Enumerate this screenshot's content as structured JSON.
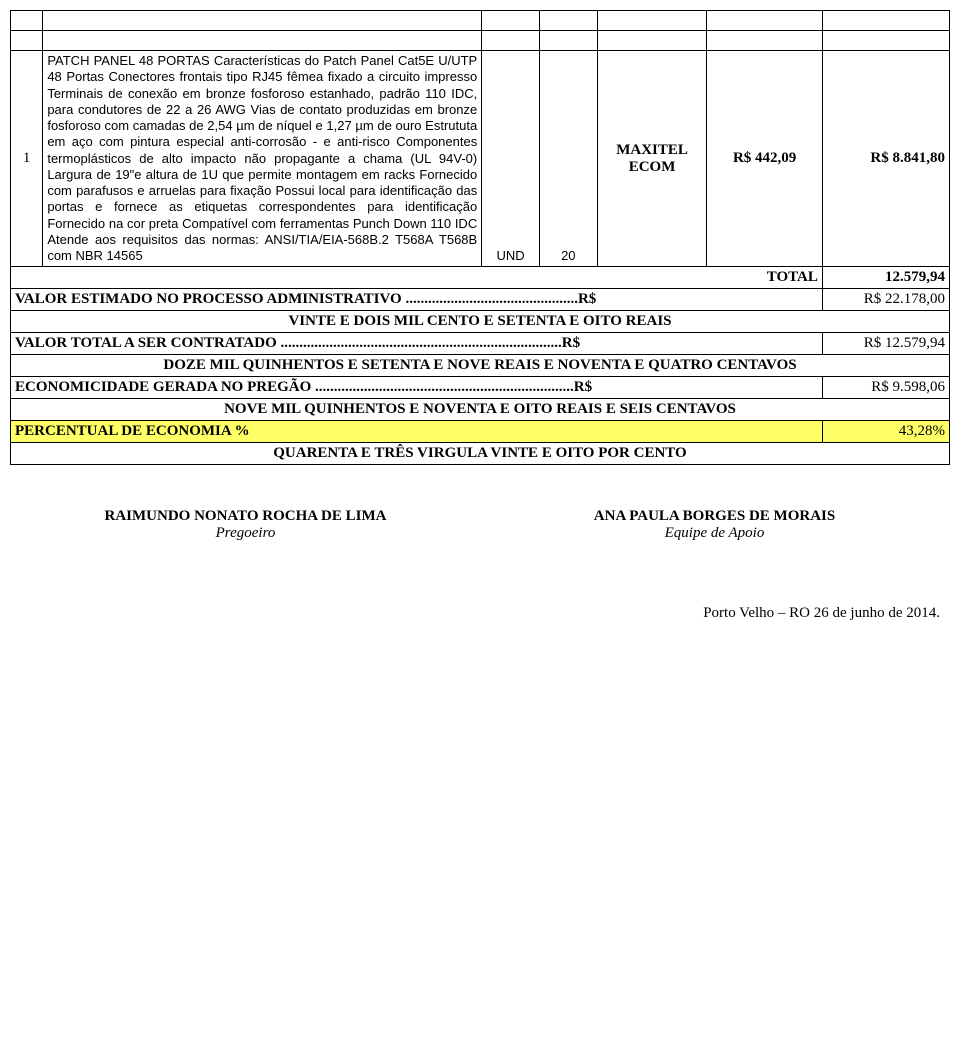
{
  "item": {
    "num": "1",
    "description": "PATCH PANEL 48 PORTAS Características do Patch Panel Cat5E U/UTP 48 Portas Conectores frontais tipo RJ45 fêmea fixado a circuito impresso Terminais de conexão em bronze fosforoso estanhado, padrão 110 IDC, para condutores de 22 a 26 AWG Vias de contato produzidas em bronze fosforoso com camadas de 2,54 µm de níquel e 1,27 µm de ouro Estrututa em aço com pintura especial anti-corrosão - e anti-risco Componentes termoplásticos de alto impacto não propagante a chama (UL 94V-0) Largura de 19\"e altura de 1U que permite montagem em racks Fornecido com parafusos e arruelas para fixação Possui local para identificação das portas e fornece as etiquetas correspondentes para identificação Fornecido na cor preta Compatível com ferramentas Punch Down 110 IDC Atende aos requisitos das normas: ANSI/TIA/EIA-568B.2 T568A T568B com NBR 14565",
    "unit": "UND",
    "qty": "20",
    "vendor": "MAXITEL ECOM",
    "unit_price": "R$ 442,09",
    "total_price": "R$ 8.841,80"
  },
  "totals": {
    "total_label": "TOTAL",
    "total_value": "12.579,94",
    "estimado_label": "VALOR ESTIMADO NO PROCESSO ADMINISTRATIVO ..............................................R$",
    "estimado_value": "R$ 22.178,00",
    "estimado_words": "VINTE E DOIS MIL CENTO E SETENTA E OITO REAIS",
    "contratado_label": "VALOR TOTAL A SER CONTRATADO ...........................................................................R$",
    "contratado_value": "R$ 12.579,94",
    "contratado_words": "DOZE MIL QUINHENTOS E SETENTA E NOVE REAIS E NOVENTA E QUATRO CENTAVOS",
    "economicidade_label": "ECONOMICIDADE GERADA NO PREGÃO .....................................................................R$",
    "economicidade_value": "R$ 9.598,06",
    "economicidade_words": "NOVE MIL QUINHENTOS E NOVENTA E OITO REAIS E SEIS CENTAVOS",
    "percentual_label": "PERCENTUAL DE ECONOMIA %",
    "percentual_value": "43,28%",
    "percentual_words": "QUARENTA E TRÊS VIRGULA VINTE E OITO POR CENTO"
  },
  "signatures": {
    "left_name": "RAIMUNDO NONATO ROCHA DE LIMA",
    "left_role": "Pregoeiro",
    "right_name": "ANA PAULA BORGES DE MORAIS",
    "right_role": "Equipe de Apoio"
  },
  "footer": "Porto Velho – RO 26 de junho de 2014."
}
